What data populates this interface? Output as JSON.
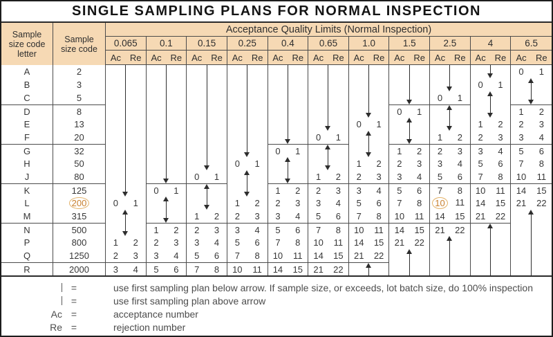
{
  "title": "SINGLE SAMPLING PLANS FOR NORMAL INSPECTION",
  "header": {
    "col1_lines": [
      "Sample",
      "size code",
      "letter"
    ],
    "col2_lines": [
      "Sample",
      "size code"
    ],
    "aql_band": "Acceptance Quality Limits (Normal Inspection)",
    "ac_label": "Ac",
    "re_label": "Re"
  },
  "rows": [
    {
      "letter": "A",
      "size": "2"
    },
    {
      "letter": "B",
      "size": "3"
    },
    {
      "letter": "C",
      "size": "5"
    },
    {
      "letter": "D",
      "size": "8"
    },
    {
      "letter": "E",
      "size": "13"
    },
    {
      "letter": "F",
      "size": "20"
    },
    {
      "letter": "G",
      "size": "32"
    },
    {
      "letter": "H",
      "size": "50"
    },
    {
      "letter": "J",
      "size": "80"
    },
    {
      "letter": "K",
      "size": "125"
    },
    {
      "letter": "L",
      "size": "200",
      "circled": true
    },
    {
      "letter": "M",
      "size": "315"
    },
    {
      "letter": "N",
      "size": "500"
    },
    {
      "letter": "P",
      "size": "800"
    },
    {
      "letter": "Q",
      "size": "1250"
    },
    {
      "letter": "R",
      "size": "2000"
    }
  ],
  "columns": [
    {
      "aql": "0.065",
      "cells": [
        "|",
        "|",
        "|",
        "|",
        "|",
        "|",
        "|",
        "|",
        "|",
        "v",
        "0 1",
        "^",
        "v",
        "1 2",
        "2 3",
        "3 4"
      ]
    },
    {
      "aql": "0.1",
      "cells": [
        "|",
        "|",
        "|",
        "|",
        "|",
        "|",
        "|",
        "|",
        "v",
        "0 1",
        "^",
        "v",
        "1 2",
        "2 3",
        "3 4",
        "5 6"
      ]
    },
    {
      "aql": "0.15",
      "cells": [
        "|",
        "|",
        "|",
        "|",
        "|",
        "|",
        "|",
        "v",
        "0 1",
        "^",
        "v",
        "1 2",
        "2 3",
        "3 4",
        "5 6",
        "7 8"
      ]
    },
    {
      "aql": "0.25",
      "cells": [
        "|",
        "|",
        "|",
        "|",
        "|",
        "|",
        "v",
        "0 1",
        "^",
        "v",
        "1 2",
        "2 3",
        "3 4",
        "5 6",
        "7 8",
        "10 11"
      ]
    },
    {
      "aql": "0.4",
      "cells": [
        "|",
        "|",
        "|",
        "|",
        "|",
        "v",
        "0 1",
        "^",
        "v",
        "1 2",
        "2 3",
        "3 4",
        "5 6",
        "7 8",
        "10 11",
        "14 15"
      ]
    },
    {
      "aql": "0.65",
      "cells": [
        "|",
        "|",
        "|",
        "|",
        "v",
        "0 1",
        "^",
        "v",
        "1 2",
        "2 3",
        "3 4",
        "5 6",
        "7 8",
        "10 11",
        "14 15",
        "21 22"
      ]
    },
    {
      "aql": "1.0",
      "cells": [
        "|",
        "|",
        "|",
        "v",
        "0 1",
        "^",
        "v",
        "1 2",
        "2 3",
        "3 4",
        "5 6",
        "7 8",
        "10 11",
        "14 15",
        "21 22",
        "^"
      ]
    },
    {
      "aql": "1.5",
      "cells": [
        "|",
        "|",
        "v",
        "0 1",
        "^",
        "v",
        "1 2",
        "2 3",
        "3 4",
        "5 6",
        "7 8",
        "10 11",
        "14 15",
        "21 22",
        "^",
        "|"
      ]
    },
    {
      "aql": "2.5",
      "cells": [
        "|",
        "v",
        "0 1",
        "^",
        "v",
        "1 2",
        "2 3",
        "3 4",
        "5 6",
        "7 8",
        "10 11",
        "14 15",
        "21 22",
        "^",
        "|",
        "|"
      ],
      "circled_row": 10
    },
    {
      "aql": "4",
      "cells": [
        "v",
        "0 1",
        "^",
        "v",
        "1 2",
        "2 3",
        "3 4",
        "5 6",
        "7 8",
        "10 11",
        "14 15",
        "21 22",
        "^",
        "|",
        "|",
        "|"
      ]
    },
    {
      "aql": "6.5",
      "cells": [
        "0 1",
        "^",
        "v",
        "1 2",
        "2 3",
        "3 4",
        "5 6",
        "7 8",
        "10 11",
        "14 15",
        "21 22",
        "^",
        "|",
        "|",
        "|",
        "|"
      ]
    }
  ],
  "group_boundary_rows": [
    3,
    6,
    9,
    12,
    15
  ],
  "legend": [
    {
      "symbol": "down-arrow",
      "label": "",
      "text": "use first sampling plan below arrow. If sample size, or exceeds, lot batch size, do 100% inspection"
    },
    {
      "symbol": "up-arrow",
      "label": "",
      "text": "use first sampling plan above arrow"
    },
    {
      "symbol": "text",
      "label": "Ac",
      "text": "acceptance number"
    },
    {
      "symbol": "text",
      "label": "Re",
      "text": "rejection number"
    }
  ],
  "legend_equals": "=",
  "colors": {
    "header_bg": "#f6d9b4",
    "border": "#4a4a4a",
    "text": "#363636",
    "highlight_text": "#c8802f",
    "highlight_ring": "#e3b269",
    "title_text": "#141414"
  }
}
